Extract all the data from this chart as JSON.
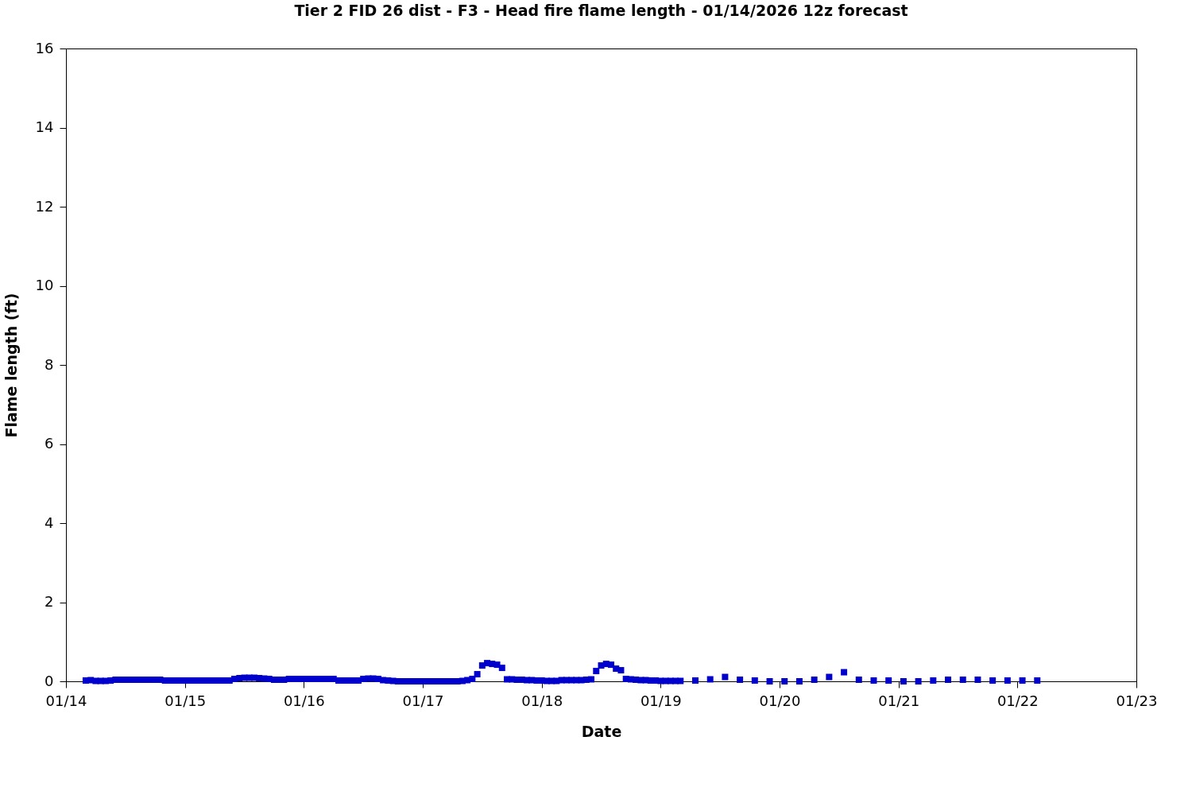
{
  "chart_data": {
    "type": "scatter",
    "title": "Tier 2 FID 26 dist - F3 - Head fire flame length - 01/14/2026 12z forecast",
    "xlabel": "Date",
    "ylabel": "Flame length (ft)",
    "xlim": [
      "2026-01-14",
      "2026-01-23"
    ],
    "xticks": [
      {
        "value": "2026-01-14",
        "label": "01/14"
      },
      {
        "value": "2026-01-15",
        "label": "01/15"
      },
      {
        "value": "2026-01-16",
        "label": "01/16"
      },
      {
        "value": "2026-01-17",
        "label": "01/17"
      },
      {
        "value": "2026-01-18",
        "label": "01/18"
      },
      {
        "value": "2026-01-19",
        "label": "01/19"
      },
      {
        "value": "2026-01-20",
        "label": "01/20"
      },
      {
        "value": "2026-01-21",
        "label": "01/21"
      },
      {
        "value": "2026-01-22",
        "label": "01/22"
      },
      {
        "value": "2026-01-23",
        "label": "01/23"
      }
    ],
    "ylim": [
      0,
      16
    ],
    "yticks": [
      0,
      2,
      4,
      6,
      8,
      10,
      12,
      14,
      16
    ],
    "grid": false,
    "legend": false,
    "marker": "square",
    "series": [
      {
        "color": "#0000cc",
        "x": [
          "2026-01-14T04:00",
          "2026-01-14T05:00",
          "2026-01-14T06:00",
          "2026-01-14T07:00",
          "2026-01-14T08:00",
          "2026-01-14T09:00",
          "2026-01-14T10:00",
          "2026-01-14T11:00",
          "2026-01-14T12:00",
          "2026-01-14T13:00",
          "2026-01-14T14:00",
          "2026-01-14T15:00",
          "2026-01-14T16:00",
          "2026-01-14T17:00",
          "2026-01-14T18:00",
          "2026-01-14T19:00",
          "2026-01-14T20:00",
          "2026-01-14T21:00",
          "2026-01-14T22:00",
          "2026-01-14T23:00",
          "2026-01-15T00:00",
          "2026-01-15T01:00",
          "2026-01-15T02:00",
          "2026-01-15T03:00",
          "2026-01-15T04:00",
          "2026-01-15T05:00",
          "2026-01-15T06:00",
          "2026-01-15T07:00",
          "2026-01-15T08:00",
          "2026-01-15T09:00",
          "2026-01-15T10:00",
          "2026-01-15T11:00",
          "2026-01-15T12:00",
          "2026-01-15T13:00",
          "2026-01-15T14:00",
          "2026-01-15T15:00",
          "2026-01-15T16:00",
          "2026-01-15T17:00",
          "2026-01-15T18:00",
          "2026-01-15T19:00",
          "2026-01-15T20:00",
          "2026-01-15T21:00",
          "2026-01-15T22:00",
          "2026-01-15T23:00",
          "2026-01-16T00:00",
          "2026-01-16T01:00",
          "2026-01-16T02:00",
          "2026-01-16T03:00",
          "2026-01-16T04:00",
          "2026-01-16T05:00",
          "2026-01-16T06:00",
          "2026-01-16T07:00",
          "2026-01-16T08:00",
          "2026-01-16T09:00",
          "2026-01-16T10:00",
          "2026-01-16T11:00",
          "2026-01-16T12:00",
          "2026-01-16T13:00",
          "2026-01-16T14:00",
          "2026-01-16T15:00",
          "2026-01-16T16:00",
          "2026-01-16T17:00",
          "2026-01-16T18:00",
          "2026-01-16T19:00",
          "2026-01-16T20:00",
          "2026-01-16T21:00",
          "2026-01-16T22:00",
          "2026-01-16T23:00",
          "2026-01-17T00:00",
          "2026-01-17T01:00",
          "2026-01-17T02:00",
          "2026-01-17T03:00",
          "2026-01-17T04:00",
          "2026-01-17T05:00",
          "2026-01-17T06:00",
          "2026-01-17T07:00",
          "2026-01-17T08:00",
          "2026-01-17T09:00",
          "2026-01-17T10:00",
          "2026-01-17T11:00",
          "2026-01-17T12:00",
          "2026-01-17T13:00",
          "2026-01-17T14:00",
          "2026-01-17T15:00",
          "2026-01-17T16:00",
          "2026-01-17T17:00",
          "2026-01-17T18:00",
          "2026-01-17T19:00",
          "2026-01-17T20:00",
          "2026-01-17T21:00",
          "2026-01-17T22:00",
          "2026-01-17T23:00",
          "2026-01-18T00:00",
          "2026-01-18T01:00",
          "2026-01-18T02:00",
          "2026-01-18T03:00",
          "2026-01-18T04:00",
          "2026-01-18T05:00",
          "2026-01-18T06:00",
          "2026-01-18T07:00",
          "2026-01-18T08:00",
          "2026-01-18T09:00",
          "2026-01-18T10:00",
          "2026-01-18T11:00",
          "2026-01-18T12:00",
          "2026-01-18T13:00",
          "2026-01-18T14:00",
          "2026-01-18T15:00",
          "2026-01-18T16:00",
          "2026-01-18T17:00",
          "2026-01-18T18:00",
          "2026-01-18T19:00",
          "2026-01-18T20:00",
          "2026-01-18T21:00",
          "2026-01-18T22:00",
          "2026-01-18T23:00",
          "2026-01-19T00:00",
          "2026-01-19T01:00",
          "2026-01-19T02:00",
          "2026-01-19T03:00",
          "2026-01-19T04:00",
          "2026-01-19T07:00",
          "2026-01-19T10:00",
          "2026-01-19T13:00",
          "2026-01-19T16:00",
          "2026-01-19T19:00",
          "2026-01-19T22:00",
          "2026-01-20T01:00",
          "2026-01-20T04:00",
          "2026-01-20T07:00",
          "2026-01-20T10:00",
          "2026-01-20T13:00",
          "2026-01-20T16:00",
          "2026-01-20T19:00",
          "2026-01-20T22:00",
          "2026-01-21T01:00",
          "2026-01-21T04:00",
          "2026-01-21T07:00",
          "2026-01-21T10:00",
          "2026-01-21T13:00",
          "2026-01-21T16:00",
          "2026-01-21T19:00",
          "2026-01-21T22:00",
          "2026-01-22T01:00",
          "2026-01-22T04:00"
        ],
        "values": [
          0.02,
          0.03,
          0.01,
          0.01,
          0.01,
          0.02,
          0.04,
          0.04,
          0.04,
          0.04,
          0.04,
          0.04,
          0.04,
          0.04,
          0.04,
          0.04,
          0.02,
          0.02,
          0.02,
          0.02,
          0.02,
          0.02,
          0.02,
          0.02,
          0.02,
          0.02,
          0.02,
          0.02,
          0.02,
          0.02,
          0.06,
          0.08,
          0.09,
          0.09,
          0.09,
          0.08,
          0.07,
          0.06,
          0.04,
          0.04,
          0.04,
          0.06,
          0.06,
          0.06,
          0.06,
          0.06,
          0.06,
          0.06,
          0.06,
          0.06,
          0.06,
          0.02,
          0.02,
          0.02,
          0.02,
          0.02,
          0.06,
          0.07,
          0.07,
          0.06,
          0.03,
          0.02,
          0.01,
          0.0,
          0.0,
          0.0,
          0.0,
          0.0,
          0.0,
          0.0,
          0.0,
          0.0,
          0.0,
          0.0,
          0.0,
          0.0,
          0.01,
          0.03,
          0.06,
          0.18,
          0.4,
          0.46,
          0.44,
          0.42,
          0.34,
          0.05,
          0.05,
          0.04,
          0.04,
          0.03,
          0.03,
          0.02,
          0.02,
          0.01,
          0.01,
          0.01,
          0.03,
          0.03,
          0.03,
          0.03,
          0.03,
          0.04,
          0.05,
          0.26,
          0.4,
          0.44,
          0.42,
          0.32,
          0.28,
          0.06,
          0.05,
          0.04,
          0.03,
          0.03,
          0.02,
          0.02,
          0.01,
          0.01,
          0.01,
          0.01,
          0.01,
          0.02,
          0.05,
          0.11,
          0.04,
          0.02,
          0.0,
          0.0,
          0.0,
          0.04,
          0.11,
          0.23,
          0.04,
          0.02,
          0.02,
          0.0,
          0.0,
          0.02,
          0.04,
          0.04,
          0.04,
          0.02,
          0.02,
          0.02,
          0.02
        ]
      }
    ]
  }
}
